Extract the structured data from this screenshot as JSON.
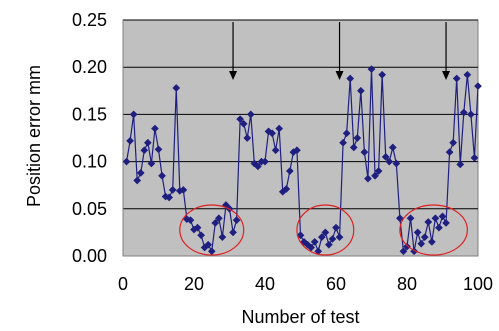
{
  "chart_data": {
    "type": "line",
    "title": "",
    "xlabel": "Number of test",
    "ylabel": "Position error  mm",
    "xlim": [
      0,
      100
    ],
    "ylim": [
      0,
      0.25
    ],
    "xticks": [
      "0",
      "20",
      "40",
      "60",
      "80",
      "100"
    ],
    "yticks": [
      "0.00",
      "0.05",
      "0.10",
      "0.15",
      "0.20",
      "0.25"
    ],
    "grid": "horizontal",
    "legend": "none",
    "plot_background": "#c0c0c0",
    "series": [
      {
        "name": "",
        "color": "#1f1f80",
        "marker": "diamond",
        "x": [
          1,
          2,
          3,
          4,
          5,
          6,
          7,
          8,
          9,
          10,
          11,
          12,
          13,
          14,
          15,
          16,
          17,
          18,
          19,
          20,
          21,
          22,
          23,
          24,
          25,
          26,
          27,
          28,
          29,
          30,
          31,
          32,
          33,
          34,
          35,
          36,
          37,
          38,
          39,
          40,
          41,
          42,
          43,
          44,
          45,
          46,
          47,
          48,
          49,
          50,
          51,
          52,
          53,
          54,
          55,
          56,
          57,
          58,
          59,
          60,
          61,
          62,
          63,
          64,
          65,
          66,
          67,
          68,
          69,
          70,
          71,
          72,
          73,
          74,
          75,
          76,
          77,
          78,
          79,
          80,
          81,
          82,
          83,
          84,
          85,
          86,
          87,
          88,
          89,
          90,
          91,
          92,
          93,
          94,
          95,
          96,
          97,
          98,
          99,
          100
        ],
        "y": [
          0.1,
          0.122,
          0.15,
          0.08,
          0.088,
          0.112,
          0.12,
          0.098,
          0.135,
          0.113,
          0.085,
          0.063,
          0.062,
          0.07,
          0.178,
          0.069,
          0.07,
          0.039,
          0.038,
          0.028,
          0.03,
          0.022,
          0.009,
          0.012,
          0.005,
          0.035,
          0.04,
          0.02,
          0.054,
          0.05,
          0.025,
          0.038,
          0.145,
          0.14,
          0.125,
          0.15,
          0.098,
          0.095,
          0.1,
          0.1,
          0.132,
          0.13,
          0.112,
          0.135,
          0.068,
          0.071,
          0.09,
          0.11,
          0.112,
          0.022,
          0.015,
          0.012,
          0.009,
          0.015,
          0.005,
          0.02,
          0.025,
          0.012,
          0.018,
          0.03,
          0.02,
          0.12,
          0.13,
          0.188,
          0.115,
          0.125,
          0.175,
          0.11,
          0.082,
          0.198,
          0.085,
          0.09,
          0.192,
          0.105,
          0.1,
          0.115,
          0.098,
          0.04,
          0.005,
          0.01,
          0.04,
          0.005,
          0.025,
          0.013,
          0.02,
          0.036,
          0.015,
          0.04,
          0.03,
          0.042,
          0.035,
          0.11,
          0.12,
          0.188,
          0.097,
          0.152,
          0.192,
          0.15,
          0.104,
          0.18
        ]
      }
    ],
    "annotations": {
      "arrows_at_x": [
        31,
        61,
        91
      ],
      "circles_x_ranges": [
        [
          16,
          34
        ],
        [
          49,
          65
        ],
        [
          78,
          97
        ]
      ]
    }
  }
}
